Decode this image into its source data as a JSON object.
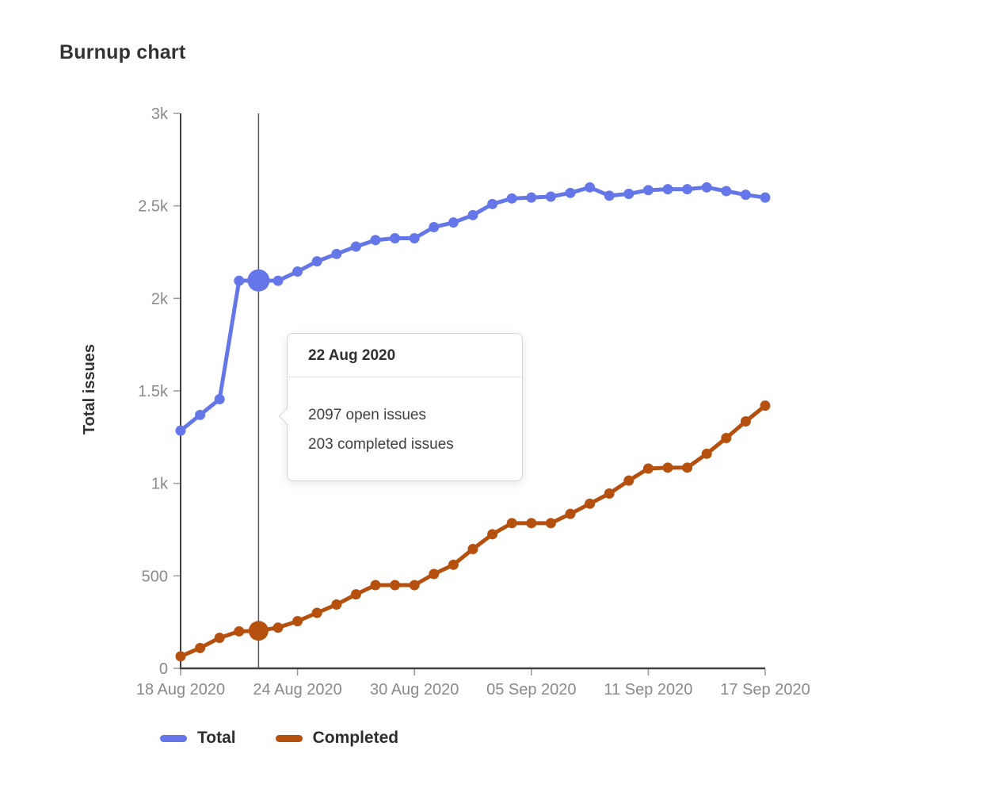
{
  "page": {
    "title": "Burnup chart"
  },
  "chart_data": {
    "type": "line",
    "title": "Burnup chart",
    "xlabel": "",
    "ylabel": "Total issues",
    "ylim": [
      0,
      3000
    ],
    "grid": false,
    "legend_position": "bottom",
    "y_ticks": [
      {
        "value": 0,
        "label": "0"
      },
      {
        "value": 500,
        "label": "500"
      },
      {
        "value": 1000,
        "label": "1k"
      },
      {
        "value": 1500,
        "label": "1.5k"
      },
      {
        "value": 2000,
        "label": "2k"
      },
      {
        "value": 2500,
        "label": "2.5k"
      },
      {
        "value": 3000,
        "label": "3k"
      }
    ],
    "x_ticks": [
      {
        "index": 0,
        "label": "18 Aug 2020"
      },
      {
        "index": 6,
        "label": "24 Aug 2020"
      },
      {
        "index": 12,
        "label": "30 Aug 2020"
      },
      {
        "index": 18,
        "label": "05 Sep 2020"
      },
      {
        "index": 24,
        "label": "11 Sep 2020"
      },
      {
        "index": 30,
        "label": "17 Sep 2020"
      }
    ],
    "series": [
      {
        "name": "Total",
        "color": "#6577e8",
        "values": [
          1285,
          1370,
          1455,
          2095,
          2097,
          2095,
          2145,
          2200,
          2240,
          2280,
          2315,
          2325,
          2325,
          2385,
          2410,
          2450,
          2510,
          2540,
          2545,
          2550,
          2570,
          2600,
          2555,
          2565,
          2585,
          2590,
          2590,
          2600,
          2580,
          2560,
          2545
        ]
      },
      {
        "name": "Completed",
        "color": "#b5500f",
        "values": [
          65,
          110,
          165,
          200,
          203,
          220,
          255,
          300,
          345,
          400,
          450,
          450,
          450,
          510,
          560,
          645,
          725,
          785,
          785,
          785,
          835,
          890,
          945,
          1015,
          1080,
          1085,
          1085,
          1160,
          1245,
          1335,
          1420
        ]
      }
    ],
    "highlight": {
      "index": 4,
      "date": "22 Aug 2020",
      "total_value": 2097,
      "completed_value": 203
    }
  },
  "tooltip": {
    "title": "22 Aug 2020",
    "lines": [
      "2097 open issues",
      "203 completed issues"
    ]
  },
  "legend": {
    "items": [
      {
        "label": "Total",
        "color": "#6577e8"
      },
      {
        "label": "Completed",
        "color": "#b5500f"
      }
    ]
  },
  "colors": {
    "axis": "#404040",
    "tick": "#999999",
    "tick_label": "#8a8a8a",
    "axis_title": "#333333",
    "hover_line": "#555555"
  }
}
